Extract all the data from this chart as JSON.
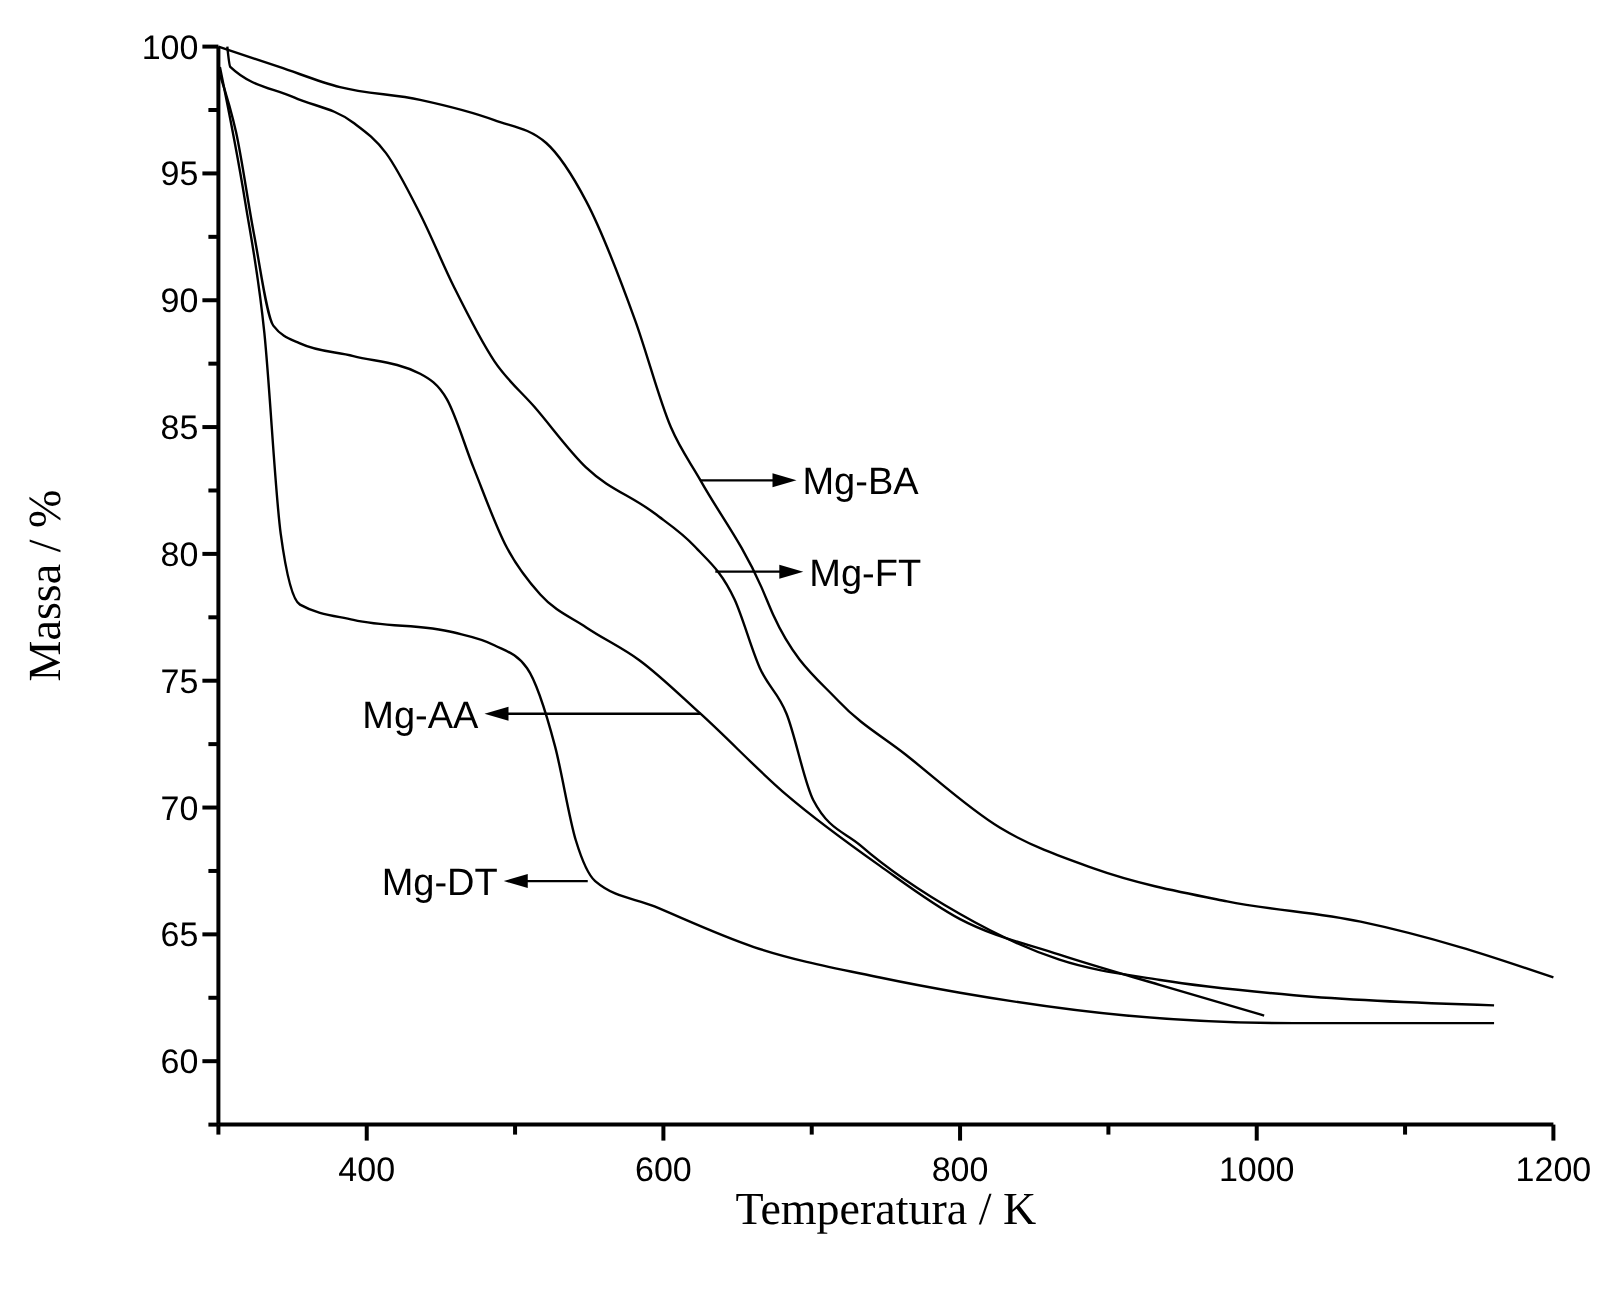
{
  "chart_data": {
    "type": "line",
    "xlabel": "Temperatura / K",
    "ylabel": "Massa / %",
    "xlim": [
      300,
      1200
    ],
    "ylim": [
      57.5,
      100
    ],
    "xticks": [
      {
        "value": 300,
        "label": null
      },
      400,
      {
        "value": 500,
        "label": null
      },
      600,
      {
        "value": 700,
        "label": null
      },
      800,
      {
        "value": 900,
        "label": null
      },
      1000,
      {
        "value": 1100,
        "label": null
      },
      1200
    ],
    "yticks": [
      {
        "value": 57.5,
        "label": null
      },
      60,
      {
        "value": 62.5,
        "label": null
      },
      65,
      {
        "value": 67.5,
        "label": null
      },
      70,
      {
        "value": 72.5,
        "label": null
      },
      75,
      {
        "value": 77.5,
        "label": null
      },
      80,
      {
        "value": 82.5,
        "label": null
      },
      85,
      {
        "value": 87.5,
        "label": null
      },
      90,
      {
        "value": 92.5,
        "label": null
      },
      95,
      {
        "value": 97.5,
        "label": null
      },
      100
    ],
    "grid": false,
    "marker": "none",
    "line_style": "solid",
    "annotations": [
      {
        "text": "Mg-BA",
        "x": 625,
        "y": 82.9
      },
      {
        "text": "Mg-FT",
        "x": 635,
        "y": 79.3
      },
      {
        "text": "Mg-AA",
        "x": 625,
        "y": 73.7
      },
      {
        "text": "Mg-DT",
        "x": 549,
        "y": 67.1
      }
    ],
    "series": [
      {
        "color": "#000000",
        "x": [
          300,
          341,
          382,
          436,
          486,
          521,
          548,
          581,
          605,
          625,
          666,
          674,
          718,
          763,
          827,
          890,
          980,
          1070,
          1137,
          1200
        ],
        "values": [
          100,
          99.2,
          98.4,
          97.9,
          97.1,
          96.2,
          93.9,
          89.2,
          85,
          82.9,
          78.7,
          77.6,
          74.2,
          72.1,
          69.2,
          67.6,
          66.3,
          65.5,
          64.5,
          63.3
        ]
      },
      {
        "color": "#000000",
        "x": [
          306,
          308,
          351,
          391,
          413,
          436,
          459,
          486,
          513,
          548,
          594,
          621,
          648,
          665,
          683,
          701,
          733,
          800,
          867,
          935,
          1025,
          1160
        ],
        "values": [
          100,
          99.2,
          98,
          97,
          95.8,
          93.4,
          90.5,
          87.6,
          85.8,
          83.4,
          81.6,
          80.3,
          78.2,
          75.5,
          73.7,
          70.3,
          68.5,
          65.8,
          64,
          63.2,
          62.6,
          62.2
        ]
      },
      {
        "color": "#000000",
        "x": [
          301,
          312,
          324,
          337,
          355,
          391,
          436,
          454,
          472,
          494,
          517,
          548,
          584,
          625,
          683,
          746,
          800,
          867,
          935,
          1005
        ],
        "values": [
          98.9,
          96.6,
          92.6,
          89,
          88.3,
          87.8,
          87.1,
          86.1,
          83.4,
          80.3,
          78.4,
          77.1,
          75.8,
          73.7,
          70.5,
          67.7,
          65.6,
          64.2,
          63,
          61.8
        ]
      },
      {
        "color": "#000000",
        "x": [
          301,
          318,
          331,
          342,
          355,
          391,
          459,
          486,
          508,
          527,
          541,
          554,
          594,
          661,
          746,
          800,
          912,
          1025,
          1160
        ],
        "values": [
          99.2,
          93.9,
          88.7,
          80.8,
          78,
          77.4,
          76.9,
          76.4,
          75.5,
          72.4,
          68.7,
          67.1,
          66.1,
          64.5,
          63.3,
          62.7,
          61.8,
          61.5,
          61.5
        ]
      }
    ]
  }
}
